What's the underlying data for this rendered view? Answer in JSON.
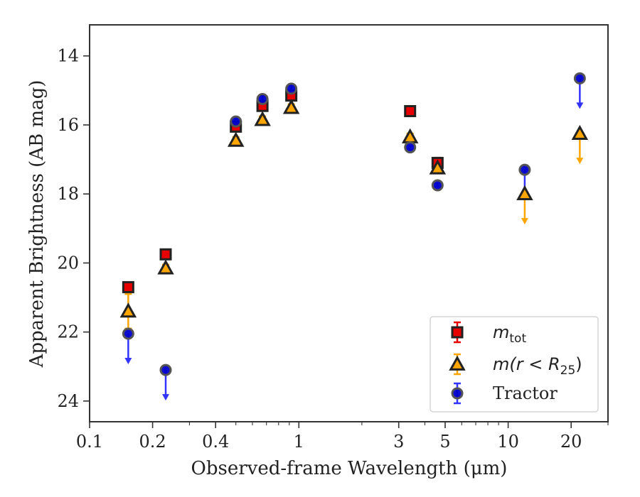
{
  "chart_data": {
    "type": "scatter",
    "xlabel": "Observed-frame Wavelength (μm)",
    "ylabel": "Apparent Brightness (AB mag)",
    "x_scale": "log",
    "xlim": [
      0.1,
      30
    ],
    "ylim": [
      24.6,
      13.1
    ],
    "y_inverted": true,
    "x_ticks": [
      0.1,
      0.2,
      0.4,
      1,
      3,
      5,
      10,
      20
    ],
    "x_tick_labels": [
      "0.1",
      "0.2",
      "0.4",
      "1",
      "3",
      "5",
      "10",
      "20"
    ],
    "y_ticks": [
      14,
      16,
      18,
      20,
      22,
      24
    ],
    "y_tick_labels": [
      "14",
      "16",
      "18",
      "20",
      "22",
      "24"
    ],
    "grid": false,
    "legend_position": "lower-right",
    "series": [
      {
        "name": "m_tot",
        "legend_main": "m",
        "legend_sub": "tot",
        "marker": "square",
        "color": "#e60000",
        "edge": "#222222",
        "errcolor": "#e60000",
        "points": [
          {
            "x": 0.153,
            "y": 20.7,
            "err": 0.1
          },
          {
            "x": 0.231,
            "y": 19.75,
            "err": 0.1
          },
          {
            "x": 0.5,
            "y": 16.05,
            "err": 0.1
          },
          {
            "x": 0.67,
            "y": 15.45,
            "err": 0.1
          },
          {
            "x": 0.92,
            "y": 15.15,
            "err": 0.1
          },
          {
            "x": 3.4,
            "y": 15.6,
            "err": 0.1
          },
          {
            "x": 4.6,
            "y": 17.1,
            "err": 0.15
          }
        ]
      },
      {
        "name": "m(r < R25)",
        "legend_main": "m(r < R",
        "legend_sub": "25",
        "legend_tail": ")",
        "marker": "triangle",
        "color": "#ffa500",
        "edge": "#222222",
        "errcolor": "#ffa500",
        "points": [
          {
            "x": 0.153,
            "y": 21.4,
            "err": 0.5
          },
          {
            "x": 0.231,
            "y": 20.15,
            "err": 0.1
          },
          {
            "x": 0.5,
            "y": 16.45,
            "err": 0.1
          },
          {
            "x": 0.67,
            "y": 15.85,
            "err": 0.1
          },
          {
            "x": 0.92,
            "y": 15.5,
            "err": 0.1
          },
          {
            "x": 3.4,
            "y": 16.35,
            "err": 0.1
          },
          {
            "x": 4.6,
            "y": 17.25,
            "err": 0.1
          },
          {
            "x": 12.0,
            "y": 18.0,
            "upper_limit": true
          },
          {
            "x": 22.0,
            "y": 16.25,
            "upper_limit": true
          }
        ]
      },
      {
        "name": "Tractor",
        "legend_main": "Tractor",
        "marker": "circle",
        "color": "#0000cc",
        "edge": "#555555",
        "errcolor": "#3333ff",
        "points": [
          {
            "x": 0.153,
            "y": 22.05,
            "upper_limit": true
          },
          {
            "x": 0.231,
            "y": 23.1,
            "upper_limit": true
          },
          {
            "x": 0.5,
            "y": 15.9,
            "err": 0.1
          },
          {
            "x": 0.67,
            "y": 15.25,
            "err": 0.1
          },
          {
            "x": 0.92,
            "y": 14.95,
            "err": 0.1
          },
          {
            "x": 3.4,
            "y": 16.65,
            "err": 0.05
          },
          {
            "x": 4.6,
            "y": 17.75,
            "err": 0.05
          },
          {
            "x": 12.0,
            "y": 17.3,
            "upper_limit": true
          },
          {
            "x": 22.0,
            "y": 14.65,
            "upper_limit": true
          }
        ]
      }
    ]
  }
}
